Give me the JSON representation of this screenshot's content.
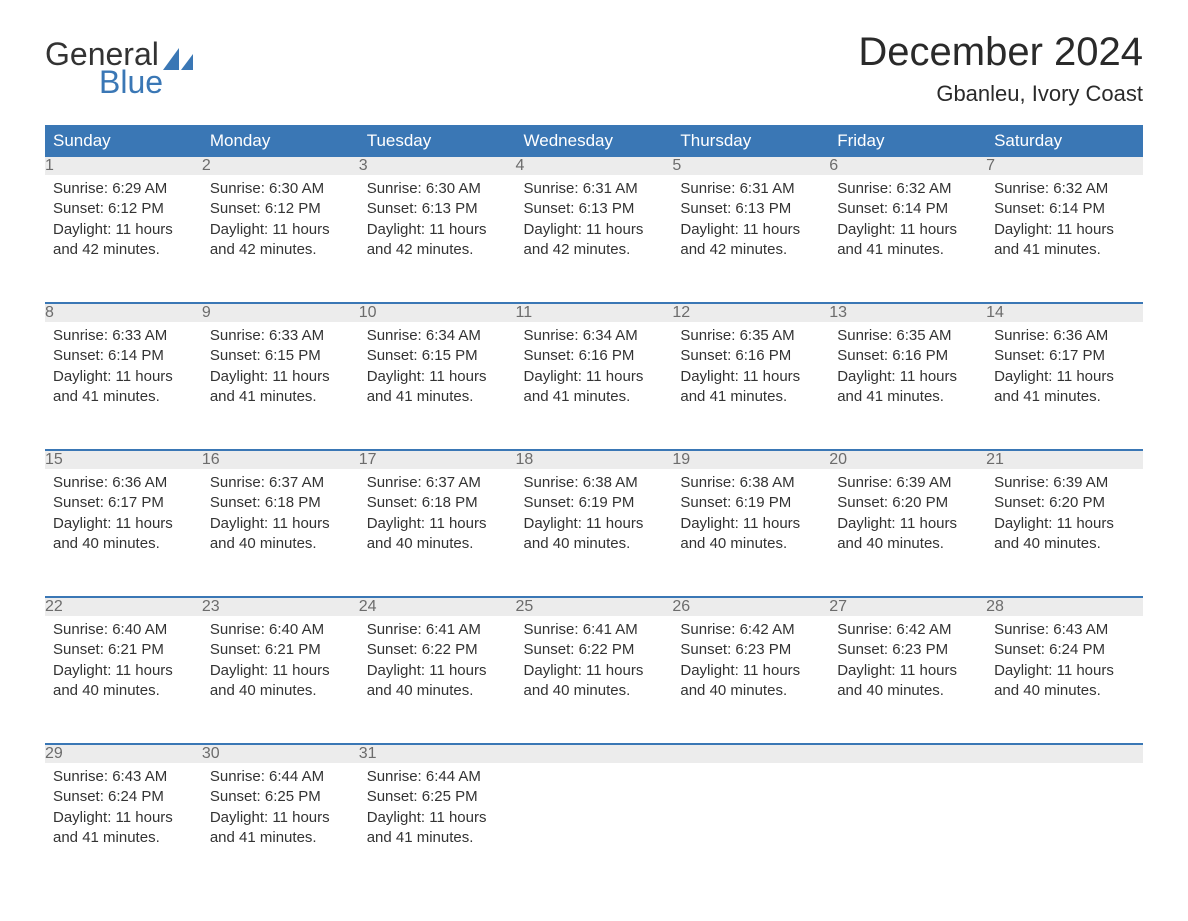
{
  "logo": {
    "text_general": "General",
    "text_blue": "Blue",
    "shape_color": "#3a77b5"
  },
  "title": "December 2024",
  "location": "Gbanleu, Ivory Coast",
  "colors": {
    "header_bg": "#3a77b5",
    "header_text": "#ffffff",
    "daynum_bg": "#ececec",
    "daynum_text": "#6c6c6c",
    "body_text": "#333333",
    "page_bg": "#ffffff"
  },
  "typography": {
    "title_fontsize": 40,
    "location_fontsize": 22,
    "header_fontsize": 17,
    "daynum_fontsize": 16,
    "body_fontsize": 15
  },
  "weekdays": [
    "Sunday",
    "Monday",
    "Tuesday",
    "Wednesday",
    "Thursday",
    "Friday",
    "Saturday"
  ],
  "labels": {
    "sunrise": "Sunrise:",
    "sunset": "Sunset:",
    "daylight": "Daylight:"
  },
  "days": [
    {
      "n": 1,
      "sunrise": "6:29 AM",
      "sunset": "6:12 PM",
      "daylight": "11 hours and 42 minutes."
    },
    {
      "n": 2,
      "sunrise": "6:30 AM",
      "sunset": "6:12 PM",
      "daylight": "11 hours and 42 minutes."
    },
    {
      "n": 3,
      "sunrise": "6:30 AM",
      "sunset": "6:13 PM",
      "daylight": "11 hours and 42 minutes."
    },
    {
      "n": 4,
      "sunrise": "6:31 AM",
      "sunset": "6:13 PM",
      "daylight": "11 hours and 42 minutes."
    },
    {
      "n": 5,
      "sunrise": "6:31 AM",
      "sunset": "6:13 PM",
      "daylight": "11 hours and 42 minutes."
    },
    {
      "n": 6,
      "sunrise": "6:32 AM",
      "sunset": "6:14 PM",
      "daylight": "11 hours and 41 minutes."
    },
    {
      "n": 7,
      "sunrise": "6:32 AM",
      "sunset": "6:14 PM",
      "daylight": "11 hours and 41 minutes."
    },
    {
      "n": 8,
      "sunrise": "6:33 AM",
      "sunset": "6:14 PM",
      "daylight": "11 hours and 41 minutes."
    },
    {
      "n": 9,
      "sunrise": "6:33 AM",
      "sunset": "6:15 PM",
      "daylight": "11 hours and 41 minutes."
    },
    {
      "n": 10,
      "sunrise": "6:34 AM",
      "sunset": "6:15 PM",
      "daylight": "11 hours and 41 minutes."
    },
    {
      "n": 11,
      "sunrise": "6:34 AM",
      "sunset": "6:16 PM",
      "daylight": "11 hours and 41 minutes."
    },
    {
      "n": 12,
      "sunrise": "6:35 AM",
      "sunset": "6:16 PM",
      "daylight": "11 hours and 41 minutes."
    },
    {
      "n": 13,
      "sunrise": "6:35 AM",
      "sunset": "6:16 PM",
      "daylight": "11 hours and 41 minutes."
    },
    {
      "n": 14,
      "sunrise": "6:36 AM",
      "sunset": "6:17 PM",
      "daylight": "11 hours and 41 minutes."
    },
    {
      "n": 15,
      "sunrise": "6:36 AM",
      "sunset": "6:17 PM",
      "daylight": "11 hours and 40 minutes."
    },
    {
      "n": 16,
      "sunrise": "6:37 AM",
      "sunset": "6:18 PM",
      "daylight": "11 hours and 40 minutes."
    },
    {
      "n": 17,
      "sunrise": "6:37 AM",
      "sunset": "6:18 PM",
      "daylight": "11 hours and 40 minutes."
    },
    {
      "n": 18,
      "sunrise": "6:38 AM",
      "sunset": "6:19 PM",
      "daylight": "11 hours and 40 minutes."
    },
    {
      "n": 19,
      "sunrise": "6:38 AM",
      "sunset": "6:19 PM",
      "daylight": "11 hours and 40 minutes."
    },
    {
      "n": 20,
      "sunrise": "6:39 AM",
      "sunset": "6:20 PM",
      "daylight": "11 hours and 40 minutes."
    },
    {
      "n": 21,
      "sunrise": "6:39 AM",
      "sunset": "6:20 PM",
      "daylight": "11 hours and 40 minutes."
    },
    {
      "n": 22,
      "sunrise": "6:40 AM",
      "sunset": "6:21 PM",
      "daylight": "11 hours and 40 minutes."
    },
    {
      "n": 23,
      "sunrise": "6:40 AM",
      "sunset": "6:21 PM",
      "daylight": "11 hours and 40 minutes."
    },
    {
      "n": 24,
      "sunrise": "6:41 AM",
      "sunset": "6:22 PM",
      "daylight": "11 hours and 40 minutes."
    },
    {
      "n": 25,
      "sunrise": "6:41 AM",
      "sunset": "6:22 PM",
      "daylight": "11 hours and 40 minutes."
    },
    {
      "n": 26,
      "sunrise": "6:42 AM",
      "sunset": "6:23 PM",
      "daylight": "11 hours and 40 minutes."
    },
    {
      "n": 27,
      "sunrise": "6:42 AM",
      "sunset": "6:23 PM",
      "daylight": "11 hours and 40 minutes."
    },
    {
      "n": 28,
      "sunrise": "6:43 AM",
      "sunset": "6:24 PM",
      "daylight": "11 hours and 40 minutes."
    },
    {
      "n": 29,
      "sunrise": "6:43 AM",
      "sunset": "6:24 PM",
      "daylight": "11 hours and 41 minutes."
    },
    {
      "n": 30,
      "sunrise": "6:44 AM",
      "sunset": "6:25 PM",
      "daylight": "11 hours and 41 minutes."
    },
    {
      "n": 31,
      "sunrise": "6:44 AM",
      "sunset": "6:25 PM",
      "daylight": "11 hours and 41 minutes."
    }
  ],
  "layout": {
    "first_weekday_index": 0,
    "columns": 7
  }
}
